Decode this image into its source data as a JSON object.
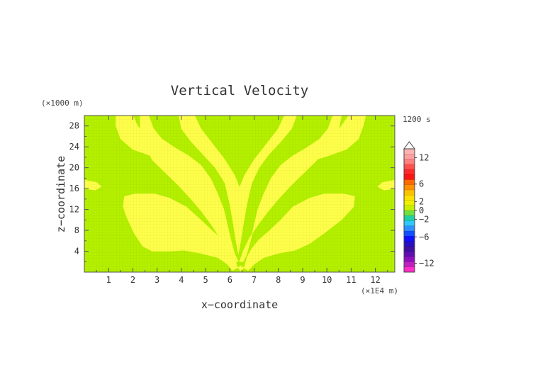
{
  "chart_data": {
    "type": "heatmap",
    "title": "Vertical Velocity",
    "xlabel": "x−coordinate",
    "ylabel": "z−coordinate",
    "x_unit": "(×1E4 m)",
    "y_unit": "(×1000 m)",
    "time_label": "1200 s",
    "xlim": [
      0,
      12.8
    ],
    "ylim": [
      0,
      30
    ],
    "x_ticks": [
      1,
      2,
      3,
      4,
      5,
      6,
      7,
      8,
      9,
      10,
      11,
      12
    ],
    "y_ticks": [
      4,
      8,
      12,
      16,
      20,
      24,
      28
    ],
    "background_color": "#b4f000",
    "highlight_color": "#ffff4a",
    "fields": [
      {
        "name": "upper-left-outer-branch",
        "polygon": [
          [
            1.3,
            30
          ],
          [
            2.0,
            30
          ],
          [
            2.2,
            28
          ],
          [
            2.5,
            26
          ],
          [
            3.0,
            24.5
          ],
          [
            3.5,
            23.2
          ],
          [
            3.8,
            22.0
          ],
          [
            3.5,
            21.2
          ],
          [
            2.8,
            22.2
          ],
          [
            2.0,
            23.5
          ],
          [
            1.5,
            25.5
          ],
          [
            1.3,
            28
          ]
        ]
      },
      {
        "name": "upper-left-inner-branch",
        "polygon": [
          [
            2.3,
            30
          ],
          [
            2.65,
            30
          ],
          [
            2.85,
            27.5
          ],
          [
            3.2,
            25.5
          ],
          [
            3.75,
            23.8
          ],
          [
            4.3,
            22.3
          ],
          [
            4.8,
            20.5
          ],
          [
            5.2,
            18
          ],
          [
            5.5,
            15
          ],
          [
            5.75,
            12
          ],
          [
            5.9,
            9
          ],
          [
            6.05,
            6
          ],
          [
            6.2,
            3.5
          ],
          [
            6.35,
            2
          ],
          [
            6.2,
            2
          ],
          [
            5.95,
            4
          ],
          [
            5.6,
            6.5
          ],
          [
            5.25,
            9
          ],
          [
            4.85,
            11.5
          ],
          [
            4.4,
            14
          ],
          [
            3.9,
            16.5
          ],
          [
            3.35,
            19
          ],
          [
            2.8,
            21.5
          ],
          [
            2.45,
            24.5
          ],
          [
            2.3,
            27.5
          ]
        ]
      },
      {
        "name": "upper-left-center-branch",
        "polygon": [
          [
            3.9,
            30
          ],
          [
            4.55,
            30
          ],
          [
            4.8,
            27.5
          ],
          [
            5.3,
            24.5
          ],
          [
            5.8,
            21.5
          ],
          [
            6.2,
            18.5
          ],
          [
            6.4,
            16.2
          ],
          [
            6.6,
            18.5
          ],
          [
            7.0,
            21.5
          ],
          [
            7.5,
            24.5
          ],
          [
            8.0,
            27.5
          ],
          [
            8.25,
            30
          ],
          [
            8.75,
            30
          ],
          [
            8.55,
            27.5
          ],
          [
            8.1,
            25
          ],
          [
            7.6,
            22.5
          ],
          [
            7.2,
            20
          ],
          [
            6.9,
            17
          ],
          [
            6.7,
            13
          ],
          [
            6.55,
            9
          ],
          [
            6.45,
            6
          ],
          [
            6.35,
            3.5
          ],
          [
            6.25,
            6
          ],
          [
            6.15,
            9
          ],
          [
            6.0,
            13
          ],
          [
            5.8,
            17
          ],
          [
            5.4,
            20
          ],
          [
            4.9,
            22.5
          ],
          [
            4.4,
            25
          ],
          [
            4.0,
            27.5
          ]
        ]
      },
      {
        "name": "upper-right-inner-branch",
        "polygon": [
          [
            10.25,
            30
          ],
          [
            10.6,
            30
          ],
          [
            10.5,
            27.5
          ],
          [
            10.15,
            24.5
          ],
          [
            9.6,
            21.5
          ],
          [
            9.05,
            19
          ],
          [
            8.5,
            16.5
          ],
          [
            8.0,
            14
          ],
          [
            7.55,
            11.5
          ],
          [
            7.15,
            9
          ],
          [
            6.8,
            6.5
          ],
          [
            6.55,
            4
          ],
          [
            6.4,
            2
          ],
          [
            6.55,
            2
          ],
          [
            6.7,
            3.5
          ],
          [
            6.85,
            6
          ],
          [
            7.0,
            9
          ],
          [
            7.15,
            12
          ],
          [
            7.4,
            15
          ],
          [
            7.7,
            18
          ],
          [
            8.1,
            20.5
          ],
          [
            8.6,
            22.3
          ],
          [
            9.15,
            23.8
          ],
          [
            9.7,
            25.5
          ],
          [
            10.05,
            27.5
          ]
        ]
      },
      {
        "name": "upper-right-outer-branch",
        "polygon": [
          [
            10.9,
            30
          ],
          [
            11.6,
            30
          ],
          [
            11.5,
            28
          ],
          [
            11.3,
            25.5
          ],
          [
            10.8,
            23.5
          ],
          [
            10.0,
            22.2
          ],
          [
            9.3,
            21.2
          ],
          [
            9.0,
            22.0
          ],
          [
            9.3,
            23.2
          ],
          [
            9.8,
            24.5
          ],
          [
            10.3,
            26
          ],
          [
            10.6,
            28
          ]
        ]
      },
      {
        "name": "lower-left-lobe",
        "polygon": [
          [
            1.65,
            14.5
          ],
          [
            2.1,
            15
          ],
          [
            2.9,
            15
          ],
          [
            3.5,
            14.2
          ],
          [
            4.2,
            12.5
          ],
          [
            4.8,
            10
          ],
          [
            5.3,
            7.8
          ],
          [
            5.7,
            6.2
          ],
          [
            6.0,
            4.5
          ],
          [
            6.2,
            2.8
          ],
          [
            6.3,
            1.0
          ],
          [
            6.45,
            0.2
          ],
          [
            6.6,
            1.0
          ],
          [
            6.7,
            2.8
          ],
          [
            6.9,
            4.5
          ],
          [
            7.2,
            6.2
          ],
          [
            7.6,
            7.8
          ],
          [
            8.1,
            10
          ],
          [
            8.6,
            12.5
          ],
          [
            9.3,
            14.2
          ],
          [
            9.9,
            15
          ],
          [
            10.7,
            15
          ],
          [
            11.15,
            14.5
          ],
          [
            11.1,
            12.5
          ],
          [
            10.6,
            10
          ],
          [
            9.9,
            7.5
          ],
          [
            9.3,
            5.5
          ],
          [
            8.7,
            4.2
          ],
          [
            8.0,
            3.6
          ],
          [
            7.4,
            2.8
          ],
          [
            7.0,
            1.5
          ],
          [
            6.75,
            0.3
          ],
          [
            6.45,
            1.2
          ],
          [
            6.1,
            0.3
          ],
          [
            5.9,
            1.5
          ],
          [
            5.5,
            2.8
          ],
          [
            4.8,
            3.6
          ],
          [
            4.1,
            4.2
          ],
          [
            3.5,
            4.0
          ],
          [
            2.8,
            4.0
          ],
          [
            2.4,
            5.0
          ],
          [
            2.05,
            7.5
          ],
          [
            1.75,
            10.5
          ],
          [
            1.6,
            12.5
          ]
        ]
      },
      {
        "name": "left-edge-blob",
        "polygon": [
          [
            0,
            16
          ],
          [
            0.45,
            15.7
          ],
          [
            0.7,
            16.4
          ],
          [
            0.5,
            17.2
          ],
          [
            0,
            17.6
          ]
        ]
      },
      {
        "name": "right-edge-blob",
        "polygon": [
          [
            12.8,
            16
          ],
          [
            12.35,
            15.7
          ],
          [
            12.1,
            16.4
          ],
          [
            12.3,
            17.2
          ],
          [
            12.8,
            17.6
          ]
        ]
      }
    ],
    "colorbar": {
      "levels": [
        {
          "value": "12",
          "color": "#ffb4b4"
        },
        {
          "value": "6",
          "color": "#ff3030"
        },
        {
          "value": "2",
          "color": "#ff9000"
        },
        {
          "value": "0",
          "color": "#c8f000"
        },
        {
          "value": "−2",
          "color": "#30c8ff"
        },
        {
          "value": "−6",
          "color": "#1010ff"
        },
        {
          "value": "−12",
          "color": "#ff2cc8"
        }
      ],
      "gradient": [
        "#ffb4b4",
        "#ffa0a0",
        "#ff8080",
        "#ff5050",
        "#ff2a2a",
        "#ff1414",
        "#ff6a00",
        "#ff9000",
        "#ffc000",
        "#ffe000",
        "#f0f000",
        "#c8f000",
        "#70e040",
        "#20d0a0",
        "#30c8ff",
        "#3090ff",
        "#1050ff",
        "#1010ff",
        "#2810c0",
        "#4010a0",
        "#6010b0",
        "#9010c0",
        "#c020c0",
        "#ff2cc8"
      ]
    }
  }
}
